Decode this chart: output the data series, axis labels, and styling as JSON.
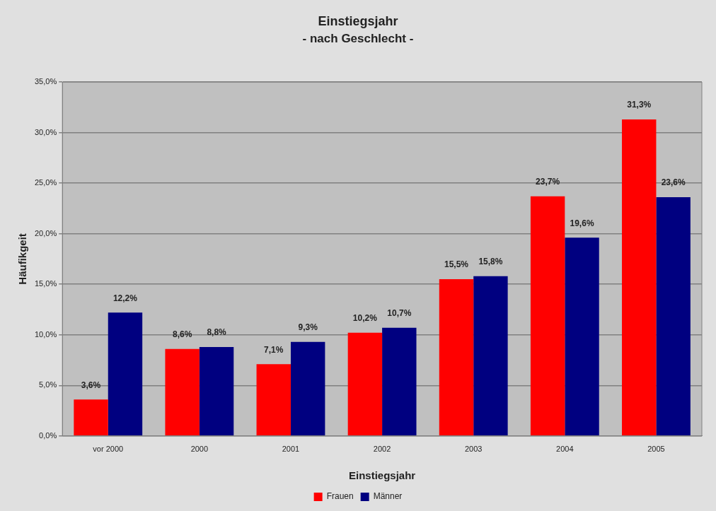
{
  "chart_data": {
    "type": "bar",
    "title": "Einstiegsjahr",
    "subtitle": "- nach Geschlecht -",
    "xlabel": "Einstiegsjahr",
    "ylabel": "Häufikgeit",
    "categories": [
      "vor 2000",
      "2000",
      "2001",
      "2002",
      "2003",
      "2004",
      "2005"
    ],
    "series": [
      {
        "name": "Frauen",
        "color": "#ff0000",
        "values": [
          3.6,
          8.6,
          7.1,
          10.2,
          15.5,
          23.7,
          31.3
        ],
        "value_labels": [
          "3,6%",
          "8,6%",
          "7,1%",
          "10,2%",
          "15,5%",
          "23,7%",
          "31,3%"
        ]
      },
      {
        "name": "Männer",
        "color": "#000080",
        "values": [
          12.2,
          8.8,
          9.3,
          10.7,
          15.8,
          19.6,
          23.6
        ],
        "value_labels": [
          "12,2%",
          "8,8%",
          "9,3%",
          "10,7%",
          "15,8%",
          "19,6%",
          "23,6%"
        ]
      }
    ],
    "ylim": [
      0,
      35
    ],
    "yticks": [
      {
        "value": 0,
        "label": "0,0%"
      },
      {
        "value": 5,
        "label": "5,0%"
      },
      {
        "value": 10,
        "label": "10,0%"
      },
      {
        "value": 15,
        "label": "15,0%"
      },
      {
        "value": 20,
        "label": "20,0%"
      },
      {
        "value": 25,
        "label": "25,0%"
      },
      {
        "value": 30,
        "label": "30,0%"
      },
      {
        "value": 35,
        "label": "35,0%"
      }
    ],
    "grid": "y",
    "legend": "bottom"
  }
}
